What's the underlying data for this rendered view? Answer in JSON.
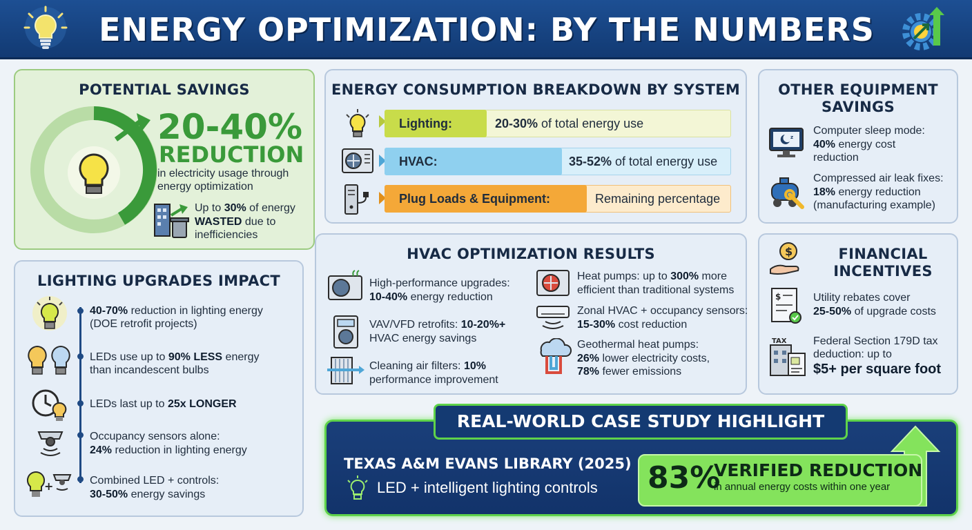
{
  "header": {
    "title": "ENERGY OPTIMIZATION: BY THE NUMBERS"
  },
  "potential_savings": {
    "title": "POTENTIAL SAVINGS",
    "big_value": "20-40%",
    "big_label": "REDUCTION",
    "desc_line1": "in electricity usage through",
    "desc_line2": "energy optimization",
    "waste_prefix": "Up to ",
    "waste_value": "30%",
    "waste_suffix": " of energy",
    "waste_bold": "WASTED",
    "waste_rest": " due to",
    "waste_line3": "inefficiencies"
  },
  "consumption": {
    "title": "ENERGY CONSUMPTION BREAKDOWN BY SYSTEM",
    "rows": [
      {
        "label": "Lighting:",
        "value": "20-30%",
        "suffix": " of total energy use"
      },
      {
        "label": "HVAC:",
        "value": "35-52%",
        "suffix": " of total energy use"
      },
      {
        "label": "Plug Loads & Equipment:",
        "value": "",
        "suffix": "Remaining percentage"
      }
    ]
  },
  "other_equipment": {
    "title_line1": "OTHER EQUIPMENT",
    "title_line2": "SAVINGS",
    "items": [
      {
        "line1": "Computer sleep mode:",
        "bold": "40%",
        "rest": " energy cost",
        "line3": "reduction"
      },
      {
        "line1": "Compressed air leak fixes:",
        "bold": "18%",
        "rest": " energy reduction",
        "line3": "(manufacturing example)"
      }
    ]
  },
  "lighting_upgrades": {
    "title": "LIGHTING UPGRADES IMPACT",
    "items": [
      {
        "pre": "",
        "bold": "40-70%",
        "rest": " reduction in lighting energy",
        "line2": "(DOE retrofit projects)"
      },
      {
        "pre": "LEDs use up to ",
        "bold": "90% LESS",
        "rest": " energy",
        "line2": "than incandescent bulbs"
      },
      {
        "pre": "LEDs last up to ",
        "bold": "25x LONGER",
        "rest": "",
        "line2": ""
      },
      {
        "pre": "Occupancy sensors alone:",
        "bold": "",
        "rest": "",
        "line2_bold": "24%",
        "line2": " reduction in lighting energy"
      },
      {
        "pre": "Combined LED + controls:",
        "bold": "",
        "rest": "",
        "line2_bold": "30-50%",
        "line2": " energy savings"
      }
    ]
  },
  "hvac": {
    "title": "HVAC OPTIMIZATION RESULTS",
    "left": [
      {
        "line1": "High-performance upgrades:",
        "bold": "10-40%",
        "rest": " energy reduction"
      },
      {
        "line1_pre": "VAV/VFD retrofits: ",
        "line1_bold": "10-20%+",
        "line2": "HVAC energy savings"
      },
      {
        "line1_pre": "Cleaning air filters: ",
        "line1_bold": "10%",
        "line2": "performance improvement"
      }
    ],
    "right": [
      {
        "pre": "Heat pumps: up to ",
        "bold": "300%",
        "rest": " more",
        "line2": "efficient than traditional systems"
      },
      {
        "line1": "Zonal HVAC + occupancy sensors:",
        "bold": "15-30%",
        "rest": " cost reduction"
      },
      {
        "line1": "Geothermal heat pumps:",
        "bold1": "26%",
        "rest1": " lower electricity costs,",
        "bold2": "78%",
        "rest2": " fewer emissions"
      }
    ]
  },
  "financial": {
    "title_line1": "FINANCIAL",
    "title_line2": "INCENTIVES",
    "rebate_line1": "Utility rebates cover",
    "rebate_bold": "25-50%",
    "rebate_rest": " of upgrade costs",
    "tax_line1": "Federal Section 179D tax",
    "tax_line2": "deduction: up to",
    "tax_bold": "$5+ per square foot",
    "tax_icon_text": "TAX"
  },
  "case_study": {
    "header": "REAL-WORLD CASE STUDY HIGHLIGHT",
    "name": "TEXAS A&M EVANS LIBRARY (2025)",
    "desc": "LED + intelligent lighting controls",
    "value": "83%",
    "result": "VERIFIED REDUCTION",
    "result_sub": "in annual energy costs within one year"
  },
  "colors": {
    "banner": "#1d4f93",
    "green": "#3a9a3a",
    "lighting_bar": "#c8dc4a",
    "hvac_bar": "#8fd0ef",
    "plug_bar": "#f4a838",
    "case_accent": "#84e35c"
  }
}
